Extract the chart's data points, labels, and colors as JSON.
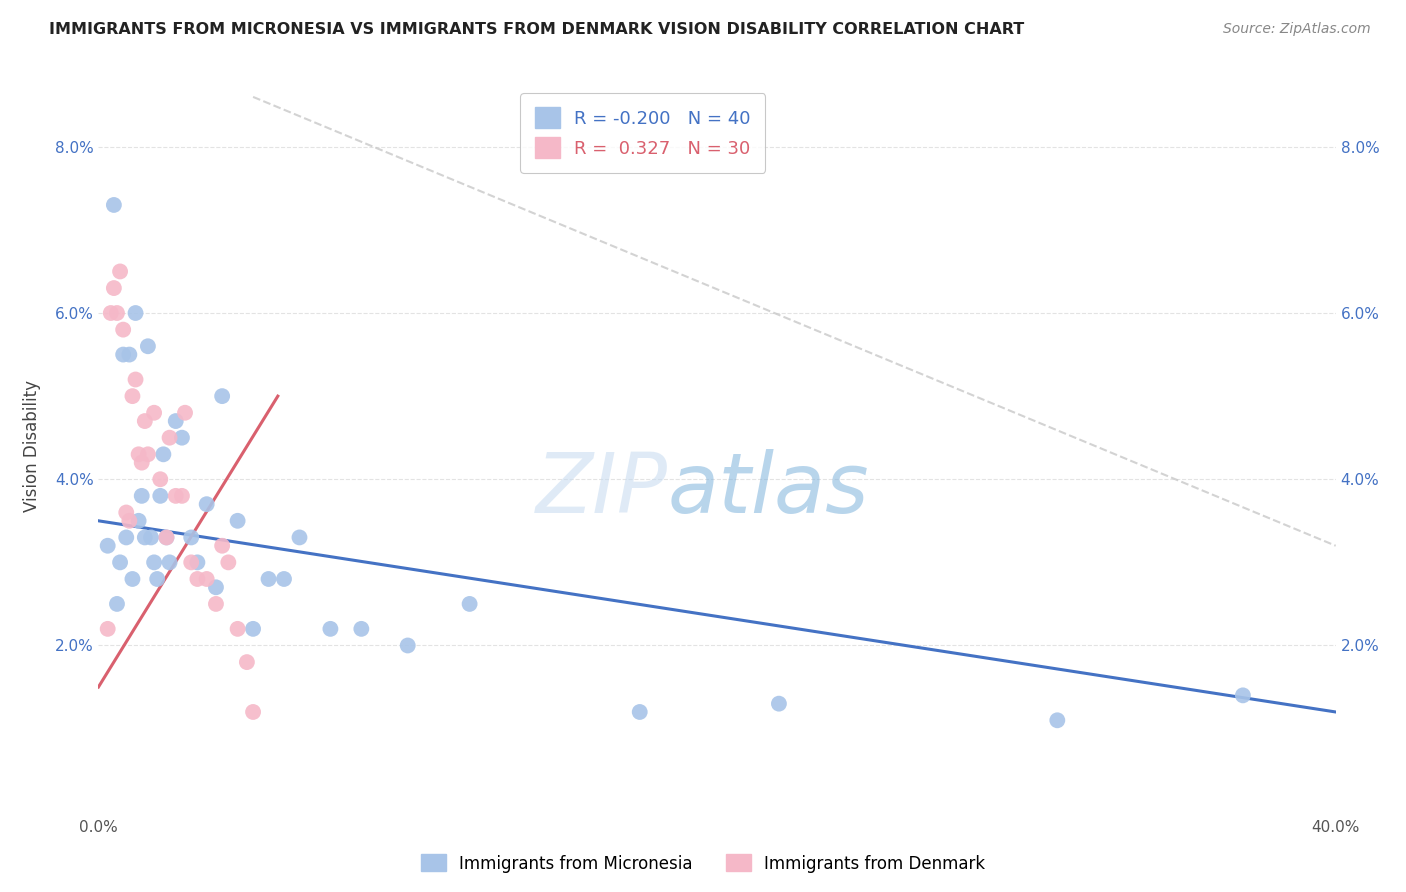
{
  "title": "IMMIGRANTS FROM MICRONESIA VS IMMIGRANTS FROM DENMARK VISION DISABILITY CORRELATION CHART",
  "source": "Source: ZipAtlas.com",
  "ylabel": "Vision Disability",
  "xlim": [
    0.0,
    0.4
  ],
  "ylim": [
    0.0,
    0.088
  ],
  "ytick_vals": [
    0.02,
    0.04,
    0.06,
    0.08
  ],
  "ytick_labels": [
    "2.0%",
    "4.0%",
    "6.0%",
    "8.0%"
  ],
  "xtick_vals": [
    0.0,
    0.1,
    0.2,
    0.3,
    0.4
  ],
  "xtick_labels": [
    "0.0%",
    "",
    "",
    "",
    "40.0%"
  ],
  "legend_blue_r": "-0.200",
  "legend_blue_n": "40",
  "legend_pink_r": "0.327",
  "legend_pink_n": "30",
  "blue_color": "#a8c4e8",
  "pink_color": "#f5b8c8",
  "blue_line_color": "#4472c4",
  "pink_line_color": "#d9606e",
  "diag_line_color": "#c8c8c8",
  "watermark_zip": "ZIP",
  "watermark_atlas": "atlas",
  "blue_scatter_x": [
    0.003,
    0.005,
    0.006,
    0.007,
    0.008,
    0.009,
    0.01,
    0.011,
    0.012,
    0.013,
    0.014,
    0.015,
    0.016,
    0.017,
    0.018,
    0.019,
    0.02,
    0.021,
    0.022,
    0.023,
    0.025,
    0.027,
    0.03,
    0.032,
    0.035,
    0.038,
    0.04,
    0.045,
    0.05,
    0.055,
    0.06,
    0.065,
    0.075,
    0.085,
    0.1,
    0.12,
    0.175,
    0.22,
    0.31,
    0.37
  ],
  "blue_scatter_y": [
    0.032,
    0.073,
    0.025,
    0.03,
    0.055,
    0.033,
    0.055,
    0.028,
    0.06,
    0.035,
    0.038,
    0.033,
    0.056,
    0.033,
    0.03,
    0.028,
    0.038,
    0.043,
    0.033,
    0.03,
    0.047,
    0.045,
    0.033,
    0.03,
    0.037,
    0.027,
    0.05,
    0.035,
    0.022,
    0.028,
    0.028,
    0.033,
    0.022,
    0.022,
    0.02,
    0.025,
    0.012,
    0.013,
    0.011,
    0.014
  ],
  "pink_scatter_x": [
    0.003,
    0.004,
    0.005,
    0.006,
    0.007,
    0.008,
    0.009,
    0.01,
    0.011,
    0.012,
    0.013,
    0.014,
    0.015,
    0.016,
    0.018,
    0.02,
    0.022,
    0.023,
    0.025,
    0.027,
    0.028,
    0.03,
    0.032,
    0.035,
    0.038,
    0.04,
    0.042,
    0.045,
    0.048,
    0.05
  ],
  "pink_scatter_y": [
    0.022,
    0.06,
    0.063,
    0.06,
    0.065,
    0.058,
    0.036,
    0.035,
    0.05,
    0.052,
    0.043,
    0.042,
    0.047,
    0.043,
    0.048,
    0.04,
    0.033,
    0.045,
    0.038,
    0.038,
    0.048,
    0.03,
    0.028,
    0.028,
    0.025,
    0.032,
    0.03,
    0.022,
    0.018,
    0.012
  ],
  "blue_line_x0": 0.0,
  "blue_line_y0": 0.035,
  "blue_line_x1": 0.4,
  "blue_line_y1": 0.012,
  "pink_line_x0": 0.0,
  "pink_line_y0": 0.015,
  "pink_line_x1": 0.058,
  "pink_line_y1": 0.05,
  "diag_line_x0": 0.05,
  "diag_line_y0": 0.086,
  "diag_line_x1": 0.4,
  "diag_line_y1": 0.032,
  "legend_label_blue": "Immigrants from Micronesia",
  "legend_label_pink": "Immigrants from Denmark",
  "background_color": "#ffffff",
  "grid_color": "#e0e0e0"
}
